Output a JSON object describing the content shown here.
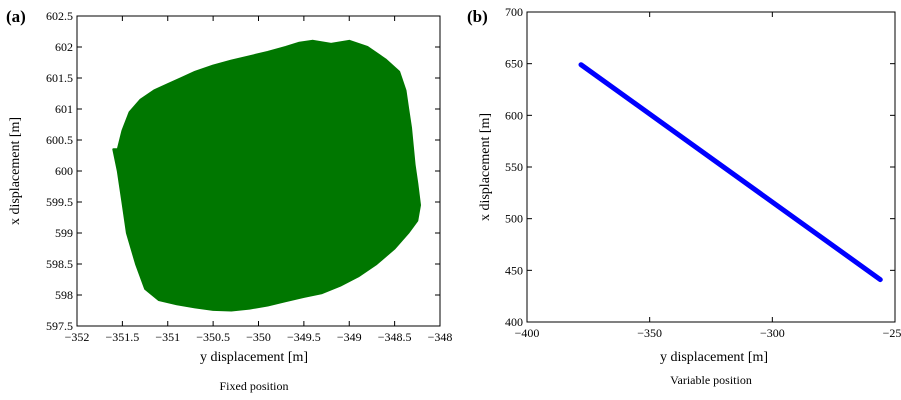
{
  "chart_data": [
    {
      "type": "area",
      "panel_label": "(a)",
      "caption": "Fixed position",
      "xlabel": "y displacement [m]",
      "ylabel": "x displacement [m]",
      "xlim": [
        -352,
        -348
      ],
      "ylim": [
        597.5,
        602.5
      ],
      "xticks": [
        -352,
        -351.5,
        -351,
        -350.5,
        -350,
        -349.5,
        -349,
        -348.5,
        -348
      ],
      "yticks": [
        597.5,
        598,
        598.5,
        599,
        599.5,
        600,
        600.5,
        601,
        601.5,
        602,
        602.5
      ],
      "xtick_labels": [
        "−352",
        "−351.5",
        "−351",
        "−350.5",
        "−350",
        "−349.5",
        "−349",
        "−348.5",
        "−348"
      ],
      "ytick_labels": [
        "597.5",
        "598",
        "598.5",
        "599",
        "599.5",
        "600",
        "600.5",
        "601",
        "601.5",
        "602",
        "602.5"
      ],
      "grid": false,
      "color": "#007700",
      "x": [
        -351.55,
        -351.5,
        -351.42,
        -351.3,
        -351.15,
        -351.0,
        -350.85,
        -350.7,
        -350.5,
        -350.3,
        -350.1,
        -349.9,
        -349.7,
        -349.55,
        -349.4,
        -349.2,
        -349.0,
        -348.8,
        -348.6,
        -348.45,
        -348.38,
        -348.35,
        -348.32,
        -348.3,
        -348.28,
        -348.25,
        -348.22,
        -348.25,
        -348.35,
        -348.5,
        -348.7,
        -348.9,
        -349.1,
        -349.3,
        -349.5,
        -349.7,
        -349.9,
        -350.1,
        -350.3,
        -350.5,
        -350.7,
        -350.9,
        -351.1,
        -351.25,
        -351.35,
        -351.45,
        -351.5,
        -351.55,
        -351.6
      ],
      "y": [
        600.35,
        600.65,
        600.95,
        601.15,
        601.3,
        601.4,
        601.5,
        601.6,
        601.7,
        601.78,
        601.85,
        601.92,
        602.0,
        602.07,
        602.1,
        602.05,
        602.1,
        602.0,
        601.8,
        601.6,
        601.3,
        601.0,
        600.7,
        600.4,
        600.1,
        599.8,
        599.45,
        599.2,
        599.0,
        598.75,
        598.5,
        598.3,
        598.15,
        598.03,
        597.97,
        597.9,
        597.83,
        597.78,
        597.75,
        597.76,
        597.8,
        597.85,
        597.92,
        598.1,
        598.5,
        599.0,
        599.5,
        600.0,
        600.35
      ]
    },
    {
      "type": "line",
      "panel_label": "(b)",
      "caption": "Variable position",
      "xlabel": "y displacement [m]",
      "ylabel": "x displacement [m]",
      "xlim": [
        -400,
        -250
      ],
      "ylim": [
        400,
        700
      ],
      "xticks": [
        -400,
        -350,
        -300,
        -250
      ],
      "yticks": [
        400,
        450,
        500,
        550,
        600,
        650,
        700
      ],
      "xtick_labels": [
        "−400",
        "−350",
        "−300",
        "−250"
      ],
      "ytick_labels": [
        "400",
        "450",
        "500",
        "550",
        "600",
        "650",
        "700"
      ],
      "grid": false,
      "color": "#0000ff",
      "x": [
        -378,
        -256
      ],
      "y": [
        649,
        441
      ]
    }
  ]
}
